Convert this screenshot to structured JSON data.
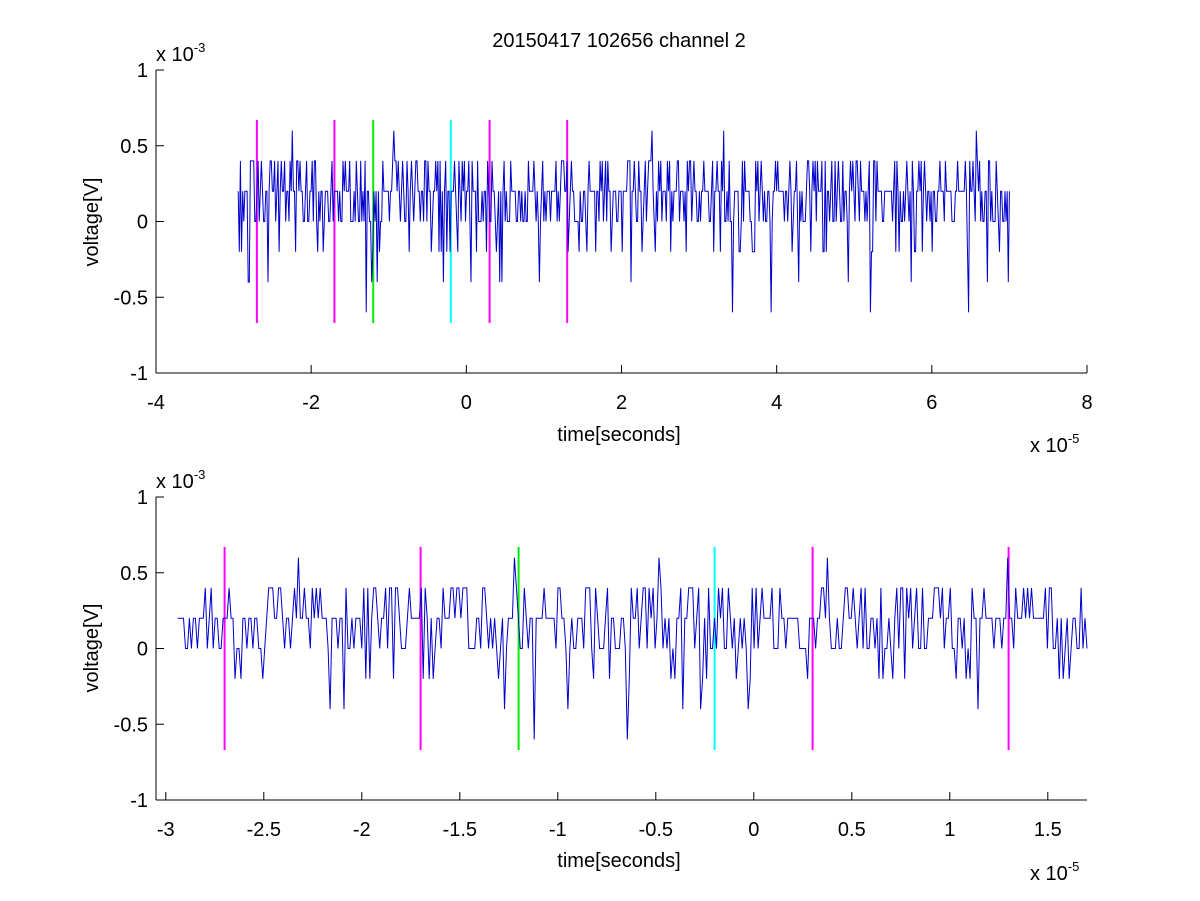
{
  "figure": {
    "title": "20150417 102656 channel 2"
  },
  "colors": {
    "signal": "#0000cc",
    "marker_magenta": "#ff00ff",
    "marker_green": "#00ee00",
    "marker_cyan": "#00ffff",
    "axes": "#000000"
  },
  "chart_data": [
    {
      "type": "line",
      "title": "20150417 102656 channel 2",
      "xlabel": "time[seconds]",
      "ylabel": "voltage[V]",
      "x_exponent": "x 10",
      "x_exponent_power": "-5",
      "y_exponent": "x 10",
      "y_exponent_power": "-3",
      "xlim": [
        -4,
        8
      ],
      "ylim": [
        -1,
        1
      ],
      "xticks": [
        -4,
        -2,
        0,
        2,
        4,
        6,
        8
      ],
      "xtick_labels": [
        "-4",
        "-2",
        "0",
        "2",
        "4",
        "6",
        "8"
      ],
      "yticks": [
        -1,
        -0.5,
        0,
        0.5,
        1
      ],
      "ytick_labels": [
        "-1",
        "-0.5",
        "0",
        "0.5",
        "1"
      ],
      "grid": false,
      "series": [
        {
          "x_start": -2.94,
          "x_end": 7.0,
          "baseline": 0.2,
          "levels": [
            -0.6,
            -0.4,
            -0.2,
            0,
            0.2,
            0.4,
            0.6
          ],
          "seed": 7,
          "samples": 700
        }
      ],
      "markers": [
        {
          "x": -2.7,
          "color": "magenta",
          "ymin": -0.67,
          "ymax": 0.67
        },
        {
          "x": -1.7,
          "color": "magenta",
          "ymin": -0.67,
          "ymax": 0.67
        },
        {
          "x": -1.2,
          "color": "green",
          "ymin": -0.67,
          "ymax": 0.67
        },
        {
          "x": -0.2,
          "color": "cyan",
          "ymin": -0.67,
          "ymax": 0.67
        },
        {
          "x": 0.3,
          "color": "magenta",
          "ymin": -0.67,
          "ymax": 0.67
        },
        {
          "x": 1.3,
          "color": "magenta",
          "ymin": -0.67,
          "ymax": 0.67
        }
      ]
    },
    {
      "type": "line",
      "title": "",
      "xlabel": "time[seconds]",
      "ylabel": "voltage[V]",
      "x_exponent": "x 10",
      "x_exponent_power": "-5",
      "y_exponent": "x 10",
      "y_exponent_power": "-3",
      "xlim": [
        -3.05,
        1.7
      ],
      "ylim": [
        -1,
        1
      ],
      "xticks": [
        -3,
        -2.5,
        -2,
        -1.5,
        -1,
        -0.5,
        0,
        0.5,
        1,
        1.5
      ],
      "xtick_labels": [
        "-3",
        "-2.5",
        "-2",
        "-1.5",
        "-1",
        "-0.5",
        "0",
        "0.5",
        "1",
        "1.5"
      ],
      "yticks": [
        -1,
        -0.5,
        0,
        0.5,
        1
      ],
      "ytick_labels": [
        "-1",
        "-0.5",
        "0",
        "0.5",
        "1"
      ],
      "grid": false,
      "series": [
        {
          "x_start": -2.94,
          "x_end": 1.7,
          "baseline": 0.2,
          "levels": [
            -0.6,
            -0.4,
            -0.2,
            0,
            0.2,
            0.4,
            0.6
          ],
          "seed": 11,
          "samples": 460
        }
      ],
      "markers": [
        {
          "x": -2.7,
          "color": "magenta",
          "ymin": -0.67,
          "ymax": 0.67
        },
        {
          "x": -1.7,
          "color": "magenta",
          "ymin": -0.67,
          "ymax": 0.67
        },
        {
          "x": -1.2,
          "color": "green",
          "ymin": -0.67,
          "ymax": 0.67
        },
        {
          "x": -0.2,
          "color": "cyan",
          "ymin": -0.67,
          "ymax": 0.67
        },
        {
          "x": 0.3,
          "color": "magenta",
          "ymin": -0.67,
          "ymax": 0.67
        },
        {
          "x": 1.3,
          "color": "magenta",
          "ymin": -0.67,
          "ymax": 0.67
        }
      ]
    }
  ]
}
